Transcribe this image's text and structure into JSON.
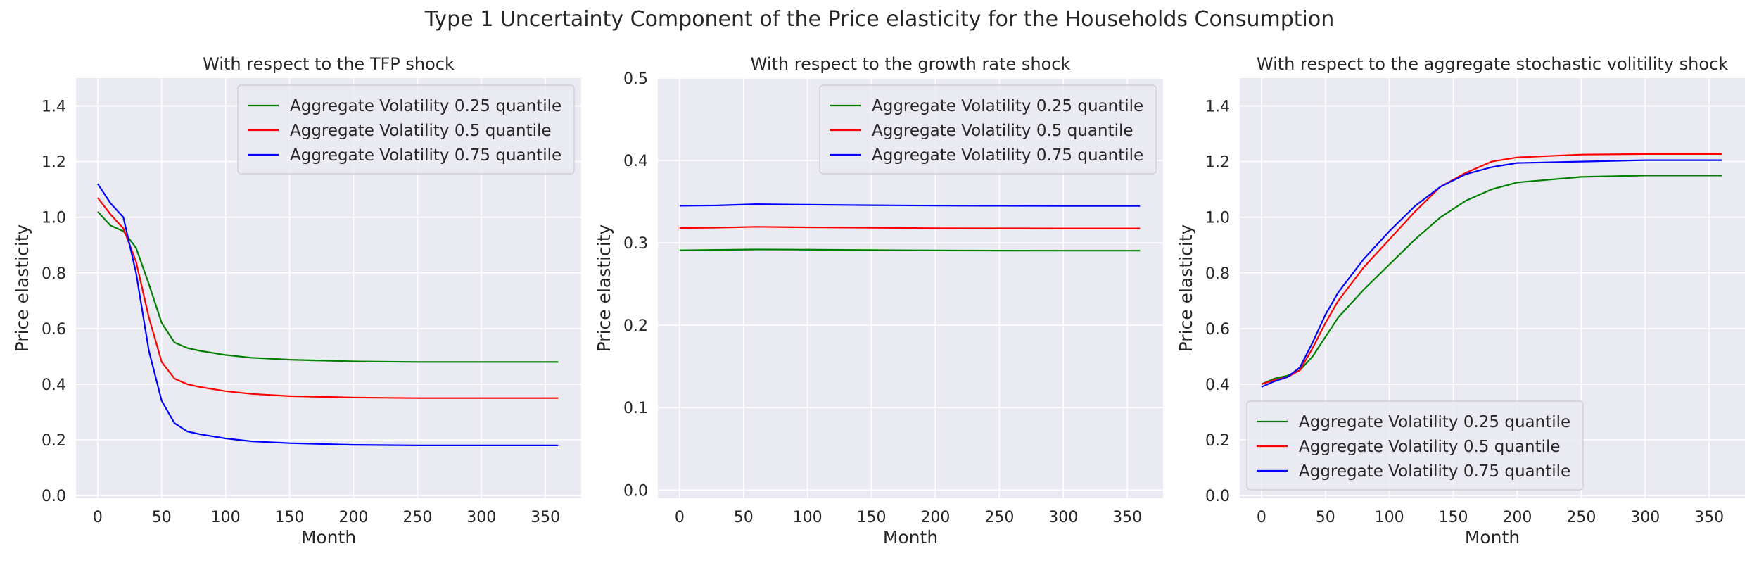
{
  "figure": {
    "suptitle": "Type 1 Uncertainty Component of the Price elasticity for the Households Consumption",
    "colors": {
      "background": "#eaeaf2",
      "grid": "#ffffff",
      "series": [
        "#008000",
        "#ff0000",
        "#0000ff"
      ]
    }
  },
  "chart_data": [
    {
      "type": "line",
      "title": "With respect to the TFP shock",
      "xlabel": "Month",
      "ylabel": "Price elasticity",
      "xlim": [
        -17,
        378
      ],
      "ylim": [
        -0.01,
        1.5
      ],
      "xticks": [
        0,
        50,
        100,
        150,
        200,
        250,
        300,
        350
      ],
      "yticks": [
        0.0,
        0.2,
        0.4,
        0.6,
        0.8,
        1.0,
        1.2,
        1.4
      ],
      "ytick_labels": [
        "0.0",
        "0.2",
        "0.4",
        "0.6",
        "0.8",
        "1.0",
        "1.2",
        "1.4"
      ],
      "legend_position": "top-right",
      "grid": true,
      "x": [
        0,
        10,
        20,
        30,
        40,
        50,
        60,
        70,
        80,
        100,
        120,
        150,
        200,
        250,
        300,
        360
      ],
      "series": [
        {
          "name": "Aggregate Volatility 0.25 quantile",
          "color": "#008000",
          "values": [
            1.02,
            0.97,
            0.95,
            0.89,
            0.76,
            0.62,
            0.55,
            0.53,
            0.52,
            0.505,
            0.495,
            0.488,
            0.482,
            0.48,
            0.48,
            0.48
          ]
        },
        {
          "name": "Aggregate Volatility 0.5 quantile",
          "color": "#ff0000",
          "values": [
            1.07,
            1.01,
            0.96,
            0.84,
            0.64,
            0.48,
            0.42,
            0.4,
            0.39,
            0.375,
            0.365,
            0.357,
            0.352,
            0.35,
            0.35,
            0.35
          ]
        },
        {
          "name": "Aggregate Volatility 0.75 quantile",
          "color": "#0000ff",
          "values": [
            1.12,
            1.05,
            1.0,
            0.8,
            0.52,
            0.34,
            0.26,
            0.23,
            0.22,
            0.205,
            0.195,
            0.188,
            0.182,
            0.18,
            0.18,
            0.18
          ]
        }
      ]
    },
    {
      "type": "line",
      "title": "With respect to the growth rate shock",
      "xlabel": "Month",
      "ylabel": "Price elasticity",
      "xlim": [
        -17,
        378
      ],
      "ylim": [
        -0.01,
        0.5
      ],
      "xticks": [
        0,
        50,
        100,
        150,
        200,
        250,
        300,
        350
      ],
      "yticks": [
        0.0,
        0.1,
        0.2,
        0.3,
        0.4,
        0.5
      ],
      "ytick_labels": [
        "0.0",
        "0.1",
        "0.2",
        "0.3",
        "0.4",
        "0.5"
      ],
      "legend_position": "top-right",
      "grid": true,
      "x": [
        0,
        30,
        60,
        90,
        150,
        200,
        250,
        300,
        360
      ],
      "series": [
        {
          "name": "Aggregate Volatility 0.25 quantile",
          "color": "#008000",
          "values": [
            0.291,
            0.2915,
            0.292,
            0.2918,
            0.2912,
            0.2908,
            0.2906,
            0.2905,
            0.2905
          ]
        },
        {
          "name": "Aggregate Volatility 0.5 quantile",
          "color": "#ff0000",
          "values": [
            0.318,
            0.3185,
            0.3195,
            0.319,
            0.3183,
            0.3178,
            0.3176,
            0.3175,
            0.3175
          ]
        },
        {
          "name": "Aggregate Volatility 0.75 quantile",
          "color": "#0000ff",
          "values": [
            0.345,
            0.3455,
            0.347,
            0.3465,
            0.3457,
            0.3452,
            0.345,
            0.3448,
            0.3448
          ]
        }
      ]
    },
    {
      "type": "line",
      "title": "With respect to the aggregate stochastic volitility shock",
      "xlabel": "Month",
      "ylabel": "Price elasticity",
      "xlim": [
        -17,
        378
      ],
      "ylim": [
        -0.01,
        1.5
      ],
      "xticks": [
        0,
        50,
        100,
        150,
        200,
        250,
        300,
        350
      ],
      "yticks": [
        0.0,
        0.2,
        0.4,
        0.6,
        0.8,
        1.0,
        1.2,
        1.4
      ],
      "ytick_labels": [
        "0.0",
        "0.2",
        "0.4",
        "0.6",
        "0.8",
        "1.0",
        "1.2",
        "1.4"
      ],
      "legend_position": "bottom-left",
      "grid": true,
      "x": [
        0,
        10,
        20,
        30,
        40,
        50,
        60,
        80,
        100,
        120,
        140,
        160,
        180,
        200,
        250,
        300,
        360
      ],
      "series": [
        {
          "name": "Aggregate Volatility 0.25 quantile",
          "color": "#008000",
          "values": [
            0.4,
            0.42,
            0.43,
            0.45,
            0.5,
            0.57,
            0.64,
            0.74,
            0.83,
            0.92,
            1.0,
            1.06,
            1.1,
            1.125,
            1.145,
            1.15,
            1.15
          ]
        },
        {
          "name": "Aggregate Volatility 0.5 quantile",
          "color": "#ff0000",
          "values": [
            0.4,
            0.415,
            0.425,
            0.45,
            0.53,
            0.62,
            0.7,
            0.82,
            0.92,
            1.02,
            1.11,
            1.16,
            1.2,
            1.215,
            1.225,
            1.227,
            1.227
          ]
        },
        {
          "name": "Aggregate Volatility 0.75 quantile",
          "color": "#0000ff",
          "values": [
            0.39,
            0.41,
            0.425,
            0.46,
            0.55,
            0.65,
            0.73,
            0.85,
            0.95,
            1.04,
            1.11,
            1.155,
            1.18,
            1.195,
            1.2,
            1.205,
            1.205
          ]
        }
      ]
    }
  ]
}
